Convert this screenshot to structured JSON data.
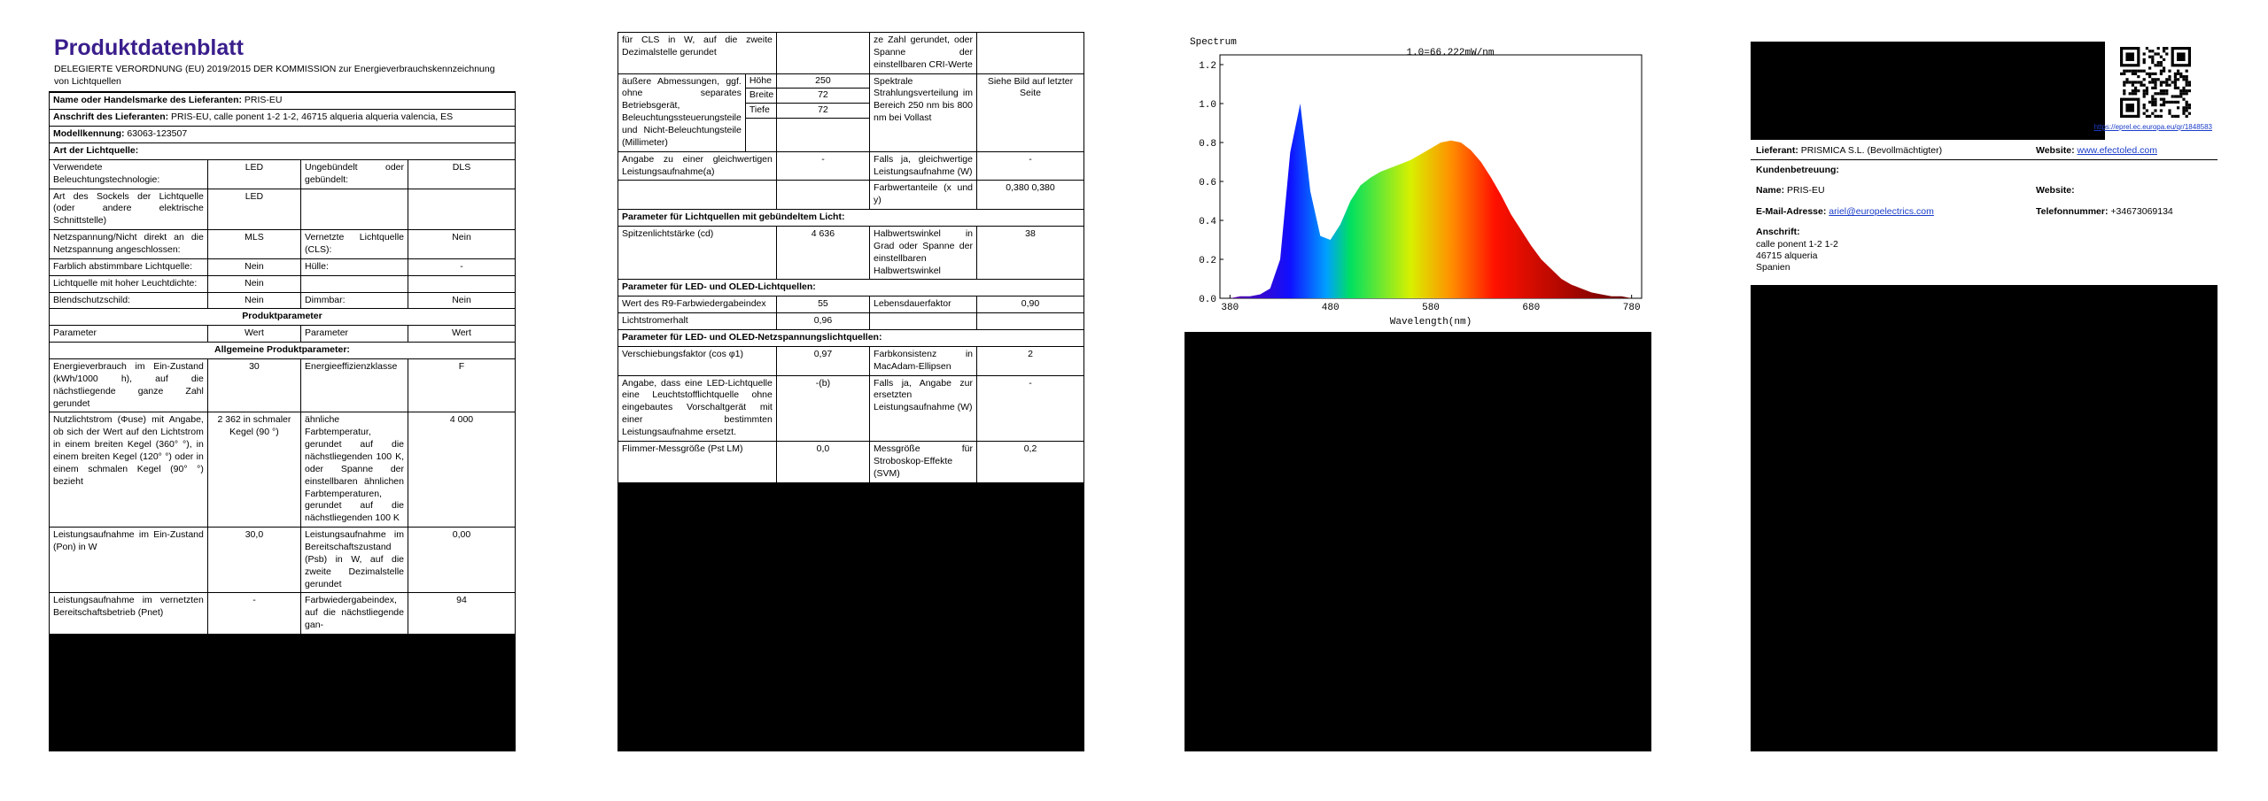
{
  "sheet": {
    "title": "Produktdatenblatt",
    "subtitle": "DELEGIERTE VERORDNUNG (EU) 2019/2015 DER KOMMISSION zur Energieverbrauchskennzeichnung von Lichtquellen",
    "rows": [
      {
        "label": "Name oder Handelsmarke des Lieferanten:",
        "value": "PRIS-EU"
      },
      {
        "label": "Anschrift des Lieferanten:",
        "value": "PRIS-EU, calle ponent 1-2 1-2, 46715 alqueria alqueria valencia, ES"
      },
      {
        "label": "Modellkennung:",
        "value": "63063-123507"
      },
      {
        "section": "Art der Lichtquelle:"
      },
      {
        "cells": [
          "Verwendete Beleuchtungstechnologie:",
          "LED",
          "Ungebündelt oder gebündelt:",
          "DLS"
        ]
      },
      {
        "cells": [
          "Art des Sockels der Lichtquelle (oder andere elektrische Schnittstelle)",
          "LED",
          null,
          null
        ]
      },
      {
        "cells": [
          "Netzspannung/Nicht direkt an die Netzspannung angeschlossen:",
          "MLS",
          "Vernetzte Lichtquelle (CLS):",
          "Nein"
        ]
      },
      {
        "cells": [
          "Farblich abstimmbare Lichtquelle:",
          "Nein",
          "Hülle:",
          "-"
        ]
      },
      {
        "cells": [
          "Lichtquelle mit hoher Leuchtdichte:",
          "Nein",
          null,
          null
        ]
      },
      {
        "cells": [
          "Blendschutzschild:",
          "Nein",
          "Dimmbar:",
          "Nein"
        ]
      },
      {
        "heading": "Produktparameter"
      },
      {
        "cells": [
          "Parameter",
          "Wert",
          "Parameter",
          "Wert"
        ]
      },
      {
        "heading": "Allgemeine Produktparameter:"
      },
      {
        "cells": [
          "Energieverbrauch im Ein-Zustand (kWh/1000 h), auf die nächstliegende ganze Zahl gerundet",
          "30",
          "Energieeffizienzklasse",
          "F"
        ]
      },
      {
        "cells": [
          "Nutzlichtstrom (Φuse) mit Angabe, ob sich der Wert auf den Lichtstrom in einem breiten Kegel (360° °), in einem breiten Kegel (120° °) oder in einem schmalen Kegel (90° °) bezieht",
          "2 362 in schmaler Kegel (90 °)",
          "ähnliche Farbtemperatur, gerundet auf die nächstliegenden 100 K, oder Spanne der einstellbaren ähnlichen Farbtemperaturen, gerundet auf die nächstliegenden 100 K",
          "4 000"
        ]
      },
      {
        "cells": [
          "Leistungsaufnahme im Ein-Zustand (Pon) in W",
          "30,0",
          "Leistungsaufnahme im Bereitschaftszustand (Psb) in W, auf die zweite Dezimalstelle gerundet",
          "0,00"
        ]
      },
      {
        "cells": [
          "Leistungsaufnahme im vernetzten Bereitschaftsbetrieb (Pnet)",
          "-",
          "Farbwiedergabeindex, auf die nächstliegende gan-",
          "94"
        ]
      }
    ]
  },
  "sheet_continued": {
    "rows": [
      {
        "cells": [
          "für CLS in W, auf die zweite Dezimalstelle gerundet",
          null,
          "ze Zahl gerundet, oder Spanne der einstellbaren CRI-Werte",
          null
        ]
      },
      {
        "cells": [
          "äußere Abmessungen, ggf. ohne separates Betriebsgerät, Beleuchtungssteuerungsteile und Nicht-Beleuchtungsteile (Millimeter)",
          null,
          "Spektrale Strahlungsverteilung im Bereich 250 nm bis 800 nm bei Vollast",
          "Siehe Bild auf letzter Seite"
        ],
        "dimensions": [
          {
            "name": "Höhe",
            "value": "250"
          },
          {
            "name": "Breite",
            "value": "72"
          },
          {
            "name": "Tiefe",
            "value": "72"
          }
        ]
      },
      {
        "cells": [
          "Angabe zu einer gleichwertigen Leistungsaufnahme(a)",
          "-",
          "Falls ja, gleichwertige Leistungsaufnahme (W)",
          "-"
        ]
      },
      {
        "cells": [
          null,
          null,
          "Farbwertanteile (x und y)",
          "0,380 0,380"
        ]
      },
      {
        "section": "Parameter für Lichtquellen mit gebündeltem Licht:"
      },
      {
        "cells": [
          "Spitzenlichtstärke (cd)",
          "4 636",
          "Halbwertswinkel in Grad oder Spanne der einstellbaren Halbwertswinkel",
          "38"
        ]
      },
      {
        "section": "Parameter für LED- und OLED-Lichtquellen:"
      },
      {
        "cells": [
          "Wert des R9-Farbwiedergabeindex",
          "55",
          "Lebensdauerfaktor",
          "0,90"
        ]
      },
      {
        "cells": [
          "Lichtstromerhalt",
          "0,96",
          null,
          null
        ]
      },
      {
        "section": "Parameter für LED- und OLED-Netzspannungslichtquellen:"
      },
      {
        "cells": [
          "Verschiebungsfaktor (cos φ1)",
          "0,97",
          "Farbkonsistenz in MacAdam-Ellipsen",
          "2"
        ]
      },
      {
        "cells": [
          "Angabe, dass eine LED-Lichtquelle eine Leuchtstofflichtquelle ohne eingebautes Vorschaltgerät mit einer bestimmten Leistungsaufnahme ersetzt.",
          "-(b)",
          "Falls ja, Angabe zur ersetzten Leistungsaufnahme (W)",
          "-"
        ]
      },
      {
        "cells": [
          "Flimmer-Messgröße (Pst LM)",
          "0,0",
          "Messgröße für Stroboskop-Effekte (SVM)",
          "0,2"
        ]
      }
    ]
  },
  "spectrum": {
    "type": "area",
    "title": "Spectrum",
    "annotation": "1.0=66.222mW/nm",
    "x_label": "Wavelength(nm)",
    "x": [
      380,
      390,
      400,
      410,
      420,
      430,
      440,
      450,
      460,
      470,
      480,
      490,
      500,
      510,
      520,
      530,
      540,
      550,
      560,
      570,
      580,
      590,
      600,
      610,
      620,
      630,
      640,
      650,
      660,
      670,
      680,
      690,
      700,
      710,
      720,
      730,
      740,
      750,
      760,
      770,
      780
    ],
    "values": [
      0.0,
      0.01,
      0.01,
      0.02,
      0.05,
      0.2,
      0.75,
      1.0,
      0.55,
      0.32,
      0.3,
      0.38,
      0.5,
      0.58,
      0.62,
      0.65,
      0.67,
      0.69,
      0.71,
      0.74,
      0.77,
      0.8,
      0.81,
      0.8,
      0.76,
      0.7,
      0.62,
      0.53,
      0.43,
      0.35,
      0.27,
      0.2,
      0.15,
      0.1,
      0.07,
      0.05,
      0.03,
      0.02,
      0.01,
      0.01,
      0.0
    ],
    "xlim": [
      370,
      790
    ],
    "ylim": [
      0,
      1.25
    ],
    "xticks": [
      380,
      480,
      580,
      680,
      780
    ],
    "yticks": [
      {
        "value": 0,
        "label": "0.0"
      },
      0.2,
      0.4,
      0.6,
      0.8,
      {
        "value": 1,
        "label": "1.0"
      },
      1.2
    ]
  },
  "contact": {
    "link": "https://eprel.ec.europa.eu/qr/1848583",
    "supplier_label": "Lieferant:",
    "supplier": "PRISMICA S.L. (Bevollmächtigter)",
    "website_label": "Website:",
    "website": "www.efectoled.com",
    "service": "Kundenbetreuung:",
    "name_label": "Name:",
    "name": "PRIS-EU",
    "website2_label": "Website:",
    "email_label": "E-Mail-Adresse:",
    "email": "ariel@europelectrics.com",
    "phone_label": "Telefonnummer:",
    "phone": "+34673069134",
    "address_label": "Anschrift:",
    "address": [
      "calle ponent 1-2 1-2",
      "46715 alqueria",
      "Spanien"
    ]
  }
}
